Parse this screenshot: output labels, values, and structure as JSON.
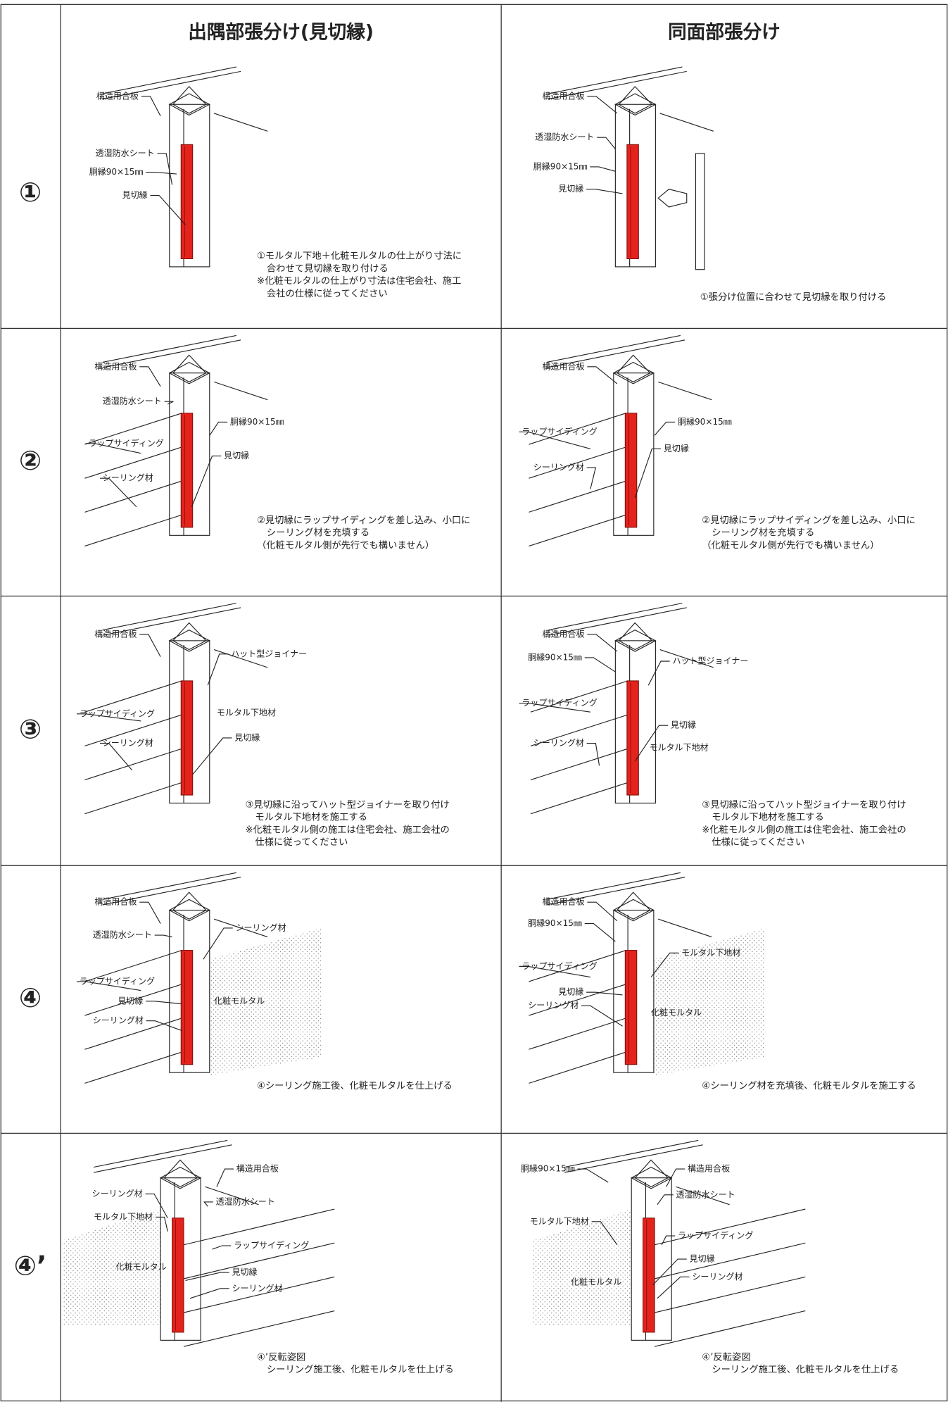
{
  "table": {
    "headers": [
      "出隅部張分け(見切縁)",
      "同面部張分け"
    ],
    "rows": [
      {
        "step": "①",
        "cells": [
          {
            "labels": [
              "構造用合板",
              "透湿防水シート",
              "胴縁90×15㎜",
              "見切縁"
            ],
            "caption": [
              "①モルタル下地＋化粧モルタルの仕上がり寸法に",
              "合わせて見切縁を取り付ける",
              "※化粧モルタルの仕上がり寸法は住宅会社、施工",
              "会社の仕様に従ってください"
            ]
          },
          {
            "labels": [
              "構造用合板",
              "透湿防水シート",
              "胴縁90×15㎜",
              "見切縁"
            ],
            "caption": [
              "①張分け位置に合わせて見切縁を取り付ける"
            ]
          }
        ]
      },
      {
        "step": "②",
        "cells": [
          {
            "labels": [
              "構造用合板",
              "透湿防水シート",
              "胴縁90×15㎜",
              "ラップサイディング",
              "見切縁",
              "シーリング材"
            ],
            "caption": [
              "②見切縁にラップサイディングを差し込み、小口に",
              "シーリング材を充填する",
              "（化粧モルタル側が先行でも構いません）"
            ]
          },
          {
            "labels": [
              "構造用合板",
              "胴縁90×15㎜",
              "ラップサイディング",
              "見切縁",
              "シーリング材"
            ],
            "caption": [
              "②見切縁にラップサイディングを差し込み、小口に",
              "シーリング材を充填する",
              "（化粧モルタル側が先行でも構いません）"
            ]
          }
        ]
      },
      {
        "step": "③",
        "cells": [
          {
            "labels": [
              "構造用合板",
              "ハット型ジョイナー",
              "ラップサイディング",
              "モルタル下地材",
              "シーリング材",
              "見切縁"
            ],
            "caption": [
              "③見切縁に沿ってハット型ジョイナーを取り付け",
              "モルタル下地材を施工する",
              "※化粧モルタル側の施工は住宅会社、施工会社の",
              "仕様に従ってください"
            ]
          },
          {
            "labels": [
              "構造用合板",
              "胴縁90×15㎜",
              "ハット型ジョイナー",
              "ラップサイディング",
              "見切縁",
              "シーリング材",
              "モルタル下地材"
            ],
            "caption": [
              "③見切縁に沿ってハット型ジョイナーを取り付け",
              "モルタル下地材を施工する",
              "※化粧モルタル側の施工は住宅会社、施工会社の",
              "仕様に従ってください"
            ]
          }
        ]
      },
      {
        "step": "④",
        "cells": [
          {
            "labels": [
              "構造用合板",
              "透湿防水シート",
              "シーリング材",
              "ラップサイディング",
              "見切縁",
              "化粧モルタル",
              "シーリング材"
            ],
            "caption": [
              "④シーリング施工後、化粧モルタルを仕上げる"
            ]
          },
          {
            "labels": [
              "構造用合板",
              "胴縁90×15㎜",
              "モルタル下地材",
              "ラップサイディング",
              "見切縁",
              "シーリング材",
              "化粧モルタル"
            ],
            "caption": [
              "④シーリング材を充填後、化粧モルタルを施工する"
            ]
          }
        ]
      },
      {
        "step": "④’",
        "cells": [
          {
            "labels": [
              "構造用合板",
              "シーリング材",
              "透湿防水シート",
              "モルタル下地材",
              "ラップサイディング",
              "化粧モルタル",
              "見切縁",
              "シーリング材"
            ],
            "caption": [
              "④’反転姿図",
              "シーリング施工後、化粧モルタルを仕上げる"
            ]
          },
          {
            "labels": [
              "胴縁90×15㎜",
              "構造用合板",
              "透湿防水シート",
              "モルタル下地材",
              "ラップサイディング",
              "見切縁",
              "化粧モルタル",
              "シーリング材"
            ],
            "caption": [
              "④’反転姿図",
              "シーリング施工後、化粧モルタルを仕上げる"
            ]
          }
        ]
      }
    ]
  }
}
